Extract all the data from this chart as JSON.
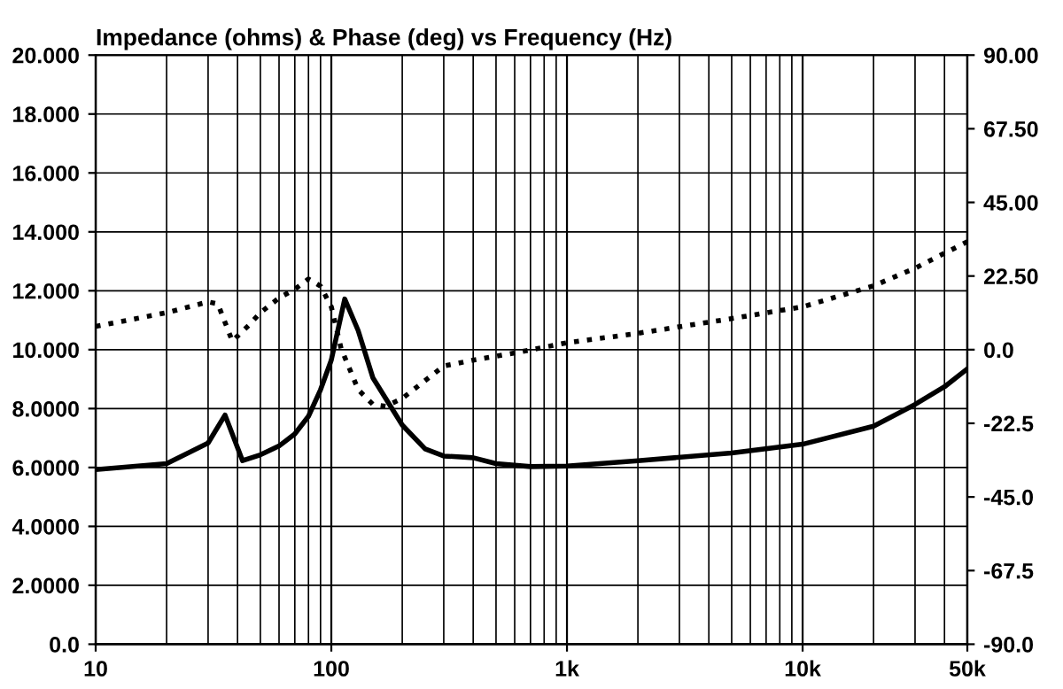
{
  "chart_data": {
    "type": "line",
    "title": "Impedance (ohms) & Phase (deg) vs Frequency (Hz)",
    "log": "x",
    "grid": true,
    "legend": false,
    "xlim": [
      10,
      50000
    ],
    "xticks": [
      10,
      100,
      {
        "value": 1000,
        "label": "1k"
      },
      {
        "value": 10000,
        "label": "10k"
      },
      {
        "value": 50000,
        "label": "50k"
      }
    ],
    "ylim": [
      0,
      20
    ],
    "yticks": [
      {
        "value": 0,
        "label": "0.0"
      },
      {
        "value": 2,
        "label": "2.0000"
      },
      {
        "value": 4,
        "label": "4.0000"
      },
      {
        "value": 6,
        "label": "6.0000"
      },
      {
        "value": 8,
        "label": "8.0000"
      },
      {
        "value": 10,
        "label": "10.000"
      },
      {
        "value": 12,
        "label": "12.000"
      },
      {
        "value": 14,
        "label": "14.000"
      },
      {
        "value": 16,
        "label": "16.000"
      },
      {
        "value": 18,
        "label": "18.000"
      },
      {
        "value": 20,
        "label": "20.000"
      }
    ],
    "y2lim": [
      -90,
      90
    ],
    "y2ticks": [
      {
        "value": -90,
        "label": "-90.0"
      },
      {
        "value": -67.5,
        "label": "-67.5"
      },
      {
        "value": -45,
        "label": "-45.0"
      },
      {
        "value": -22.5,
        "label": "-22.5"
      },
      {
        "value": 0,
        "label": "0.0"
      },
      {
        "value": 22.5,
        "label": "22.50"
      },
      {
        "value": 45,
        "label": "45.00"
      },
      {
        "value": 67.5,
        "label": "67.50"
      },
      {
        "value": 90,
        "label": "90.00"
      }
    ],
    "series": [
      {
        "color": "#000000",
        "line_style": "solid",
        "x": [
          10,
          20,
          30,
          35.4,
          42,
          50,
          60,
          70,
          80,
          90,
          100,
          114,
          130,
          150,
          200,
          250,
          300,
          400,
          500,
          700,
          1000,
          2000,
          5000,
          10000,
          20000,
          30000,
          40000,
          50000
        ],
        "values": [
          5.93,
          6.13,
          6.83,
          7.78,
          6.23,
          6.43,
          6.73,
          7.14,
          7.74,
          8.64,
          9.65,
          11.72,
          10.65,
          9.05,
          7.44,
          6.63,
          6.39,
          6.33,
          6.13,
          6.03,
          6.05,
          6.23,
          6.49,
          6.79,
          7.4,
          8.14,
          8.74,
          9.35
        ]
      },
      {
        "color": "#000000",
        "line_style": "dotted",
        "axis": "y2",
        "x": [
          10,
          20,
          30,
          33,
          38,
          45,
          50,
          60,
          70,
          80,
          90,
          100,
          110,
          130,
          150,
          170,
          200,
          300,
          400,
          600,
          1000,
          2000,
          5000,
          10000,
          20000,
          30000,
          50000
        ],
        "values": [
          7.1,
          11.3,
          14.6,
          14.0,
          2.6,
          7.7,
          11.3,
          15.8,
          18.5,
          21.6,
          19.4,
          13.1,
          0.4,
          -12.2,
          -16.7,
          -17.3,
          -14.9,
          -5.0,
          -3.2,
          -1.0,
          2.1,
          5.0,
          9.5,
          13.1,
          19.5,
          24.9,
          33.0
        ]
      }
    ]
  }
}
